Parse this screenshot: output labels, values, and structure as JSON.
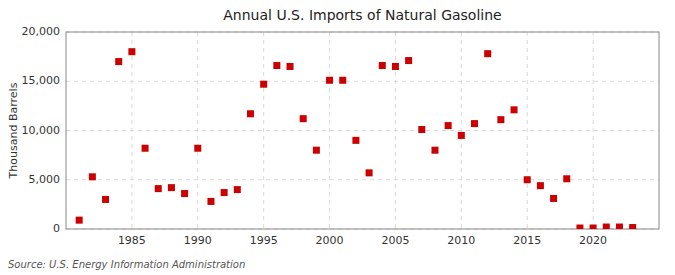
{
  "chart_data": {
    "type": "scatter",
    "title": "Annual U.S. Imports of Natural Gasoline",
    "y_label": "Thousand Barrels",
    "annotations": [
      "Source: U.S. Energy Information Administration"
    ],
    "x": [
      1981,
      1982,
      1983,
      1984,
      1985,
      1986,
      1987,
      1988,
      1989,
      1990,
      1991,
      1992,
      1993,
      1994,
      1995,
      1996,
      1997,
      1998,
      1999,
      2000,
      2001,
      2002,
      2003,
      2004,
      2005,
      2006,
      2007,
      2008,
      2009,
      2010,
      2011,
      2012,
      2013,
      2014,
      2015,
      2016,
      2017,
      2018,
      2019,
      2020,
      2021,
      2022,
      2023
    ],
    "values": [
      900,
      5300,
      3000,
      17000,
      18000,
      8200,
      4100,
      4200,
      3600,
      8200,
      2800,
      3700,
      4000,
      11700,
      14700,
      16600,
      16500,
      11200,
      8000,
      15100,
      15100,
      9000,
      5700,
      16600,
      16500,
      17100,
      10100,
      8000,
      10500,
      9500,
      10700,
      17800,
      11100,
      12100,
      5000,
      4400,
      3100,
      5100,
      100,
      100,
      200,
      200,
      150
    ],
    "color": "#cc0000",
    "marker": "square",
    "grid": true,
    "xlim": [
      1980,
      2025
    ],
    "ylim": [
      0,
      20000
    ],
    "xticks": [
      1985,
      1990,
      1995,
      2000,
      2005,
      2010,
      2015,
      2020
    ],
    "yticks": [
      0,
      {
        "value": 5000,
        "label": "5,000"
      },
      {
        "value": 10000,
        "label": "10,000"
      },
      {
        "value": 15000,
        "label": "15,000"
      },
      {
        "value": 20000,
        "label": "20,000"
      }
    ]
  }
}
